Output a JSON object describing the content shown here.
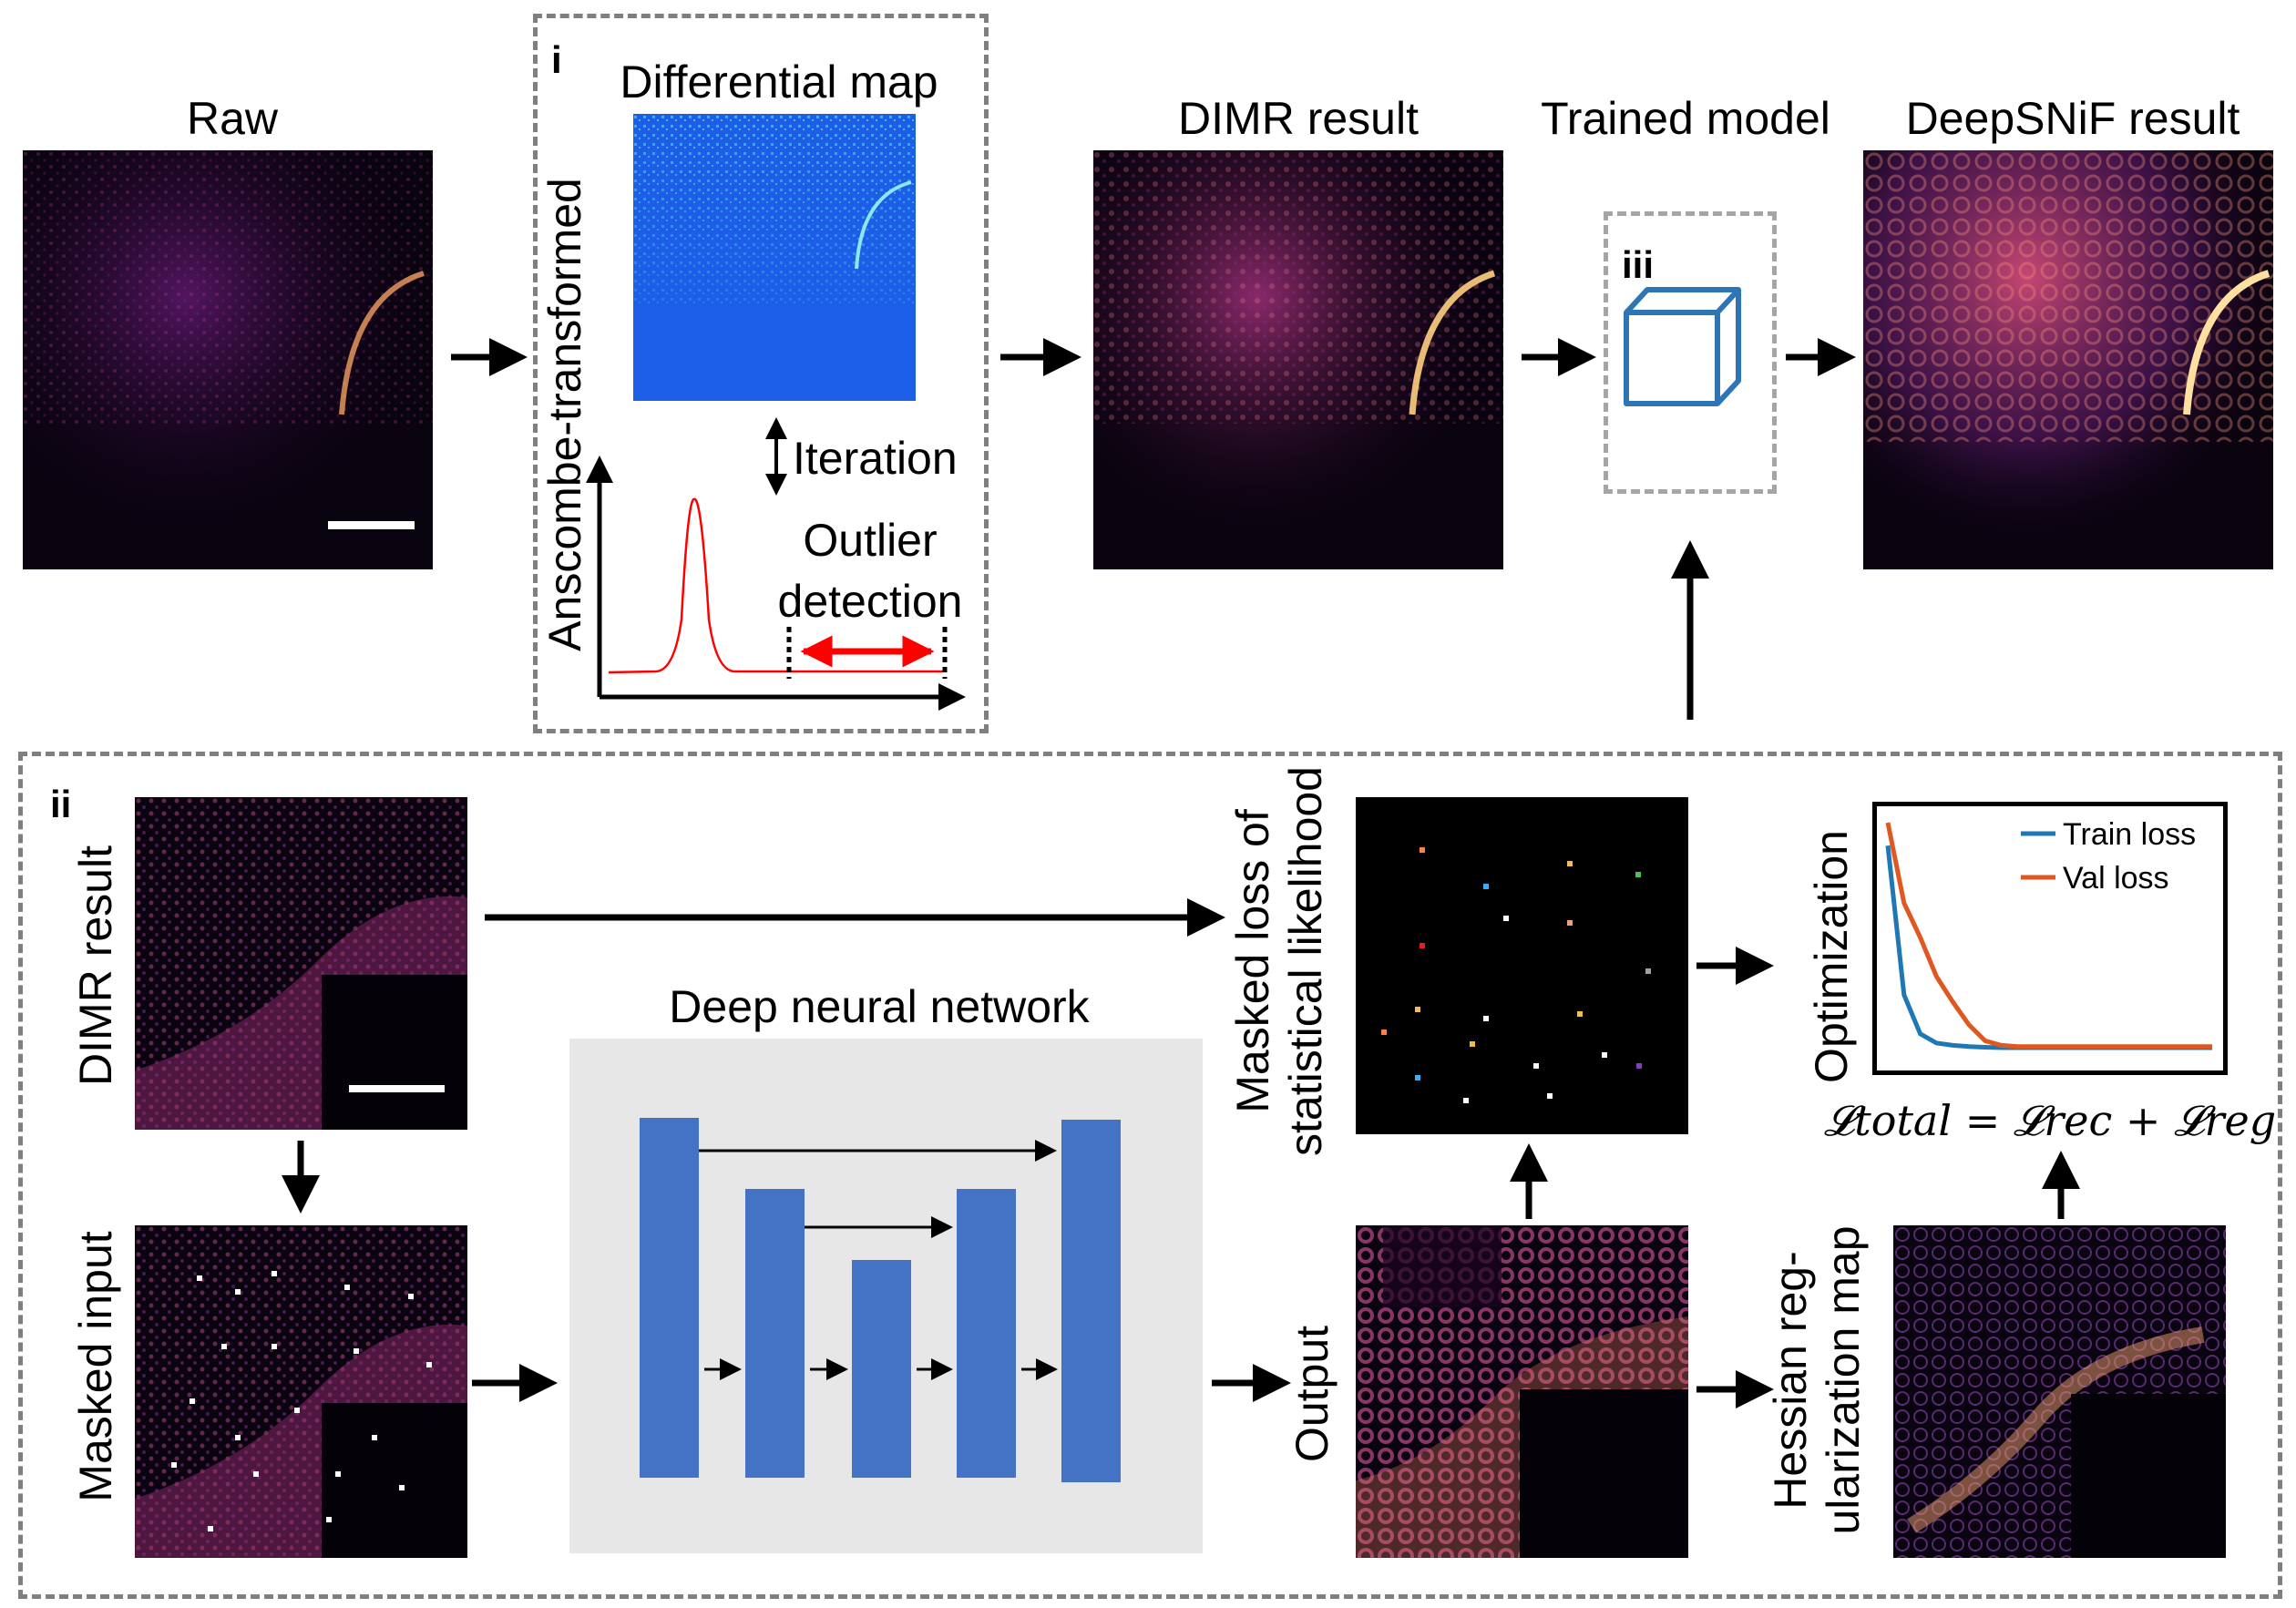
{
  "titles": {
    "raw": "Raw",
    "dimr_result": "DIMR result",
    "trained_model": "Trained model",
    "deepsnif_result": "DeepSNiF result",
    "differential_map": "Differential map"
  },
  "panel_i": {
    "letter": "i",
    "y_label": "Anscombe-transformed",
    "iteration": "Iteration",
    "outlier_line1": "Outlier",
    "outlier_line2": "detection"
  },
  "panel_ii": {
    "letter": "ii",
    "dimr_result_label": "DIMR result",
    "masked_input_label": "Masked input",
    "dnn_title": "Deep neural network",
    "masked_loss_line1": "Masked loss of",
    "masked_loss_line2": "statistical likelihood",
    "output_label": "Output",
    "hessian_line1": "Hessian reg-",
    "hessian_line2": "ularization map",
    "optimization_label": "Optimization",
    "legend_train": "Train loss",
    "legend_val": "Val loss",
    "loss_equation": "𝓛total = 𝓛rec + 𝓛reg"
  },
  "panel_iii": {
    "letter": "iii"
  },
  "colors": {
    "unet_block": "#4472c4",
    "train_loss": "#1f77b4",
    "val_loss": "#e0571f",
    "histogram": "#ff0000",
    "outlier_arrow": "#ff0000",
    "cube": "#2e75b6",
    "dnn_background": "#e7e7e7",
    "dashed_border": "#7f7f7f"
  },
  "chart_data": {
    "type": "line",
    "x": [
      0,
      1,
      2,
      3,
      4,
      5,
      6,
      7,
      8,
      9,
      10,
      11,
      12,
      13,
      14,
      15,
      16,
      17,
      18,
      19,
      20
    ],
    "series": [
      {
        "name": "Train loss",
        "values": [
          0.9,
          0.25,
          0.08,
          0.04,
          0.03,
          0.025,
          0.022,
          0.02,
          0.02,
          0.02,
          0.02,
          0.02,
          0.02,
          0.02,
          0.02,
          0.02,
          0.02,
          0.02,
          0.02,
          0.02,
          0.02
        ]
      },
      {
        "name": "Val loss",
        "values": [
          1.0,
          0.65,
          0.5,
          0.33,
          0.22,
          0.12,
          0.05,
          0.03,
          0.025,
          0.025,
          0.025,
          0.025,
          0.025,
          0.025,
          0.025,
          0.025,
          0.025,
          0.025,
          0.025,
          0.025,
          0.025
        ]
      }
    ],
    "ylabel": "Optimization",
    "legend_position": "top-right",
    "grid": false
  }
}
